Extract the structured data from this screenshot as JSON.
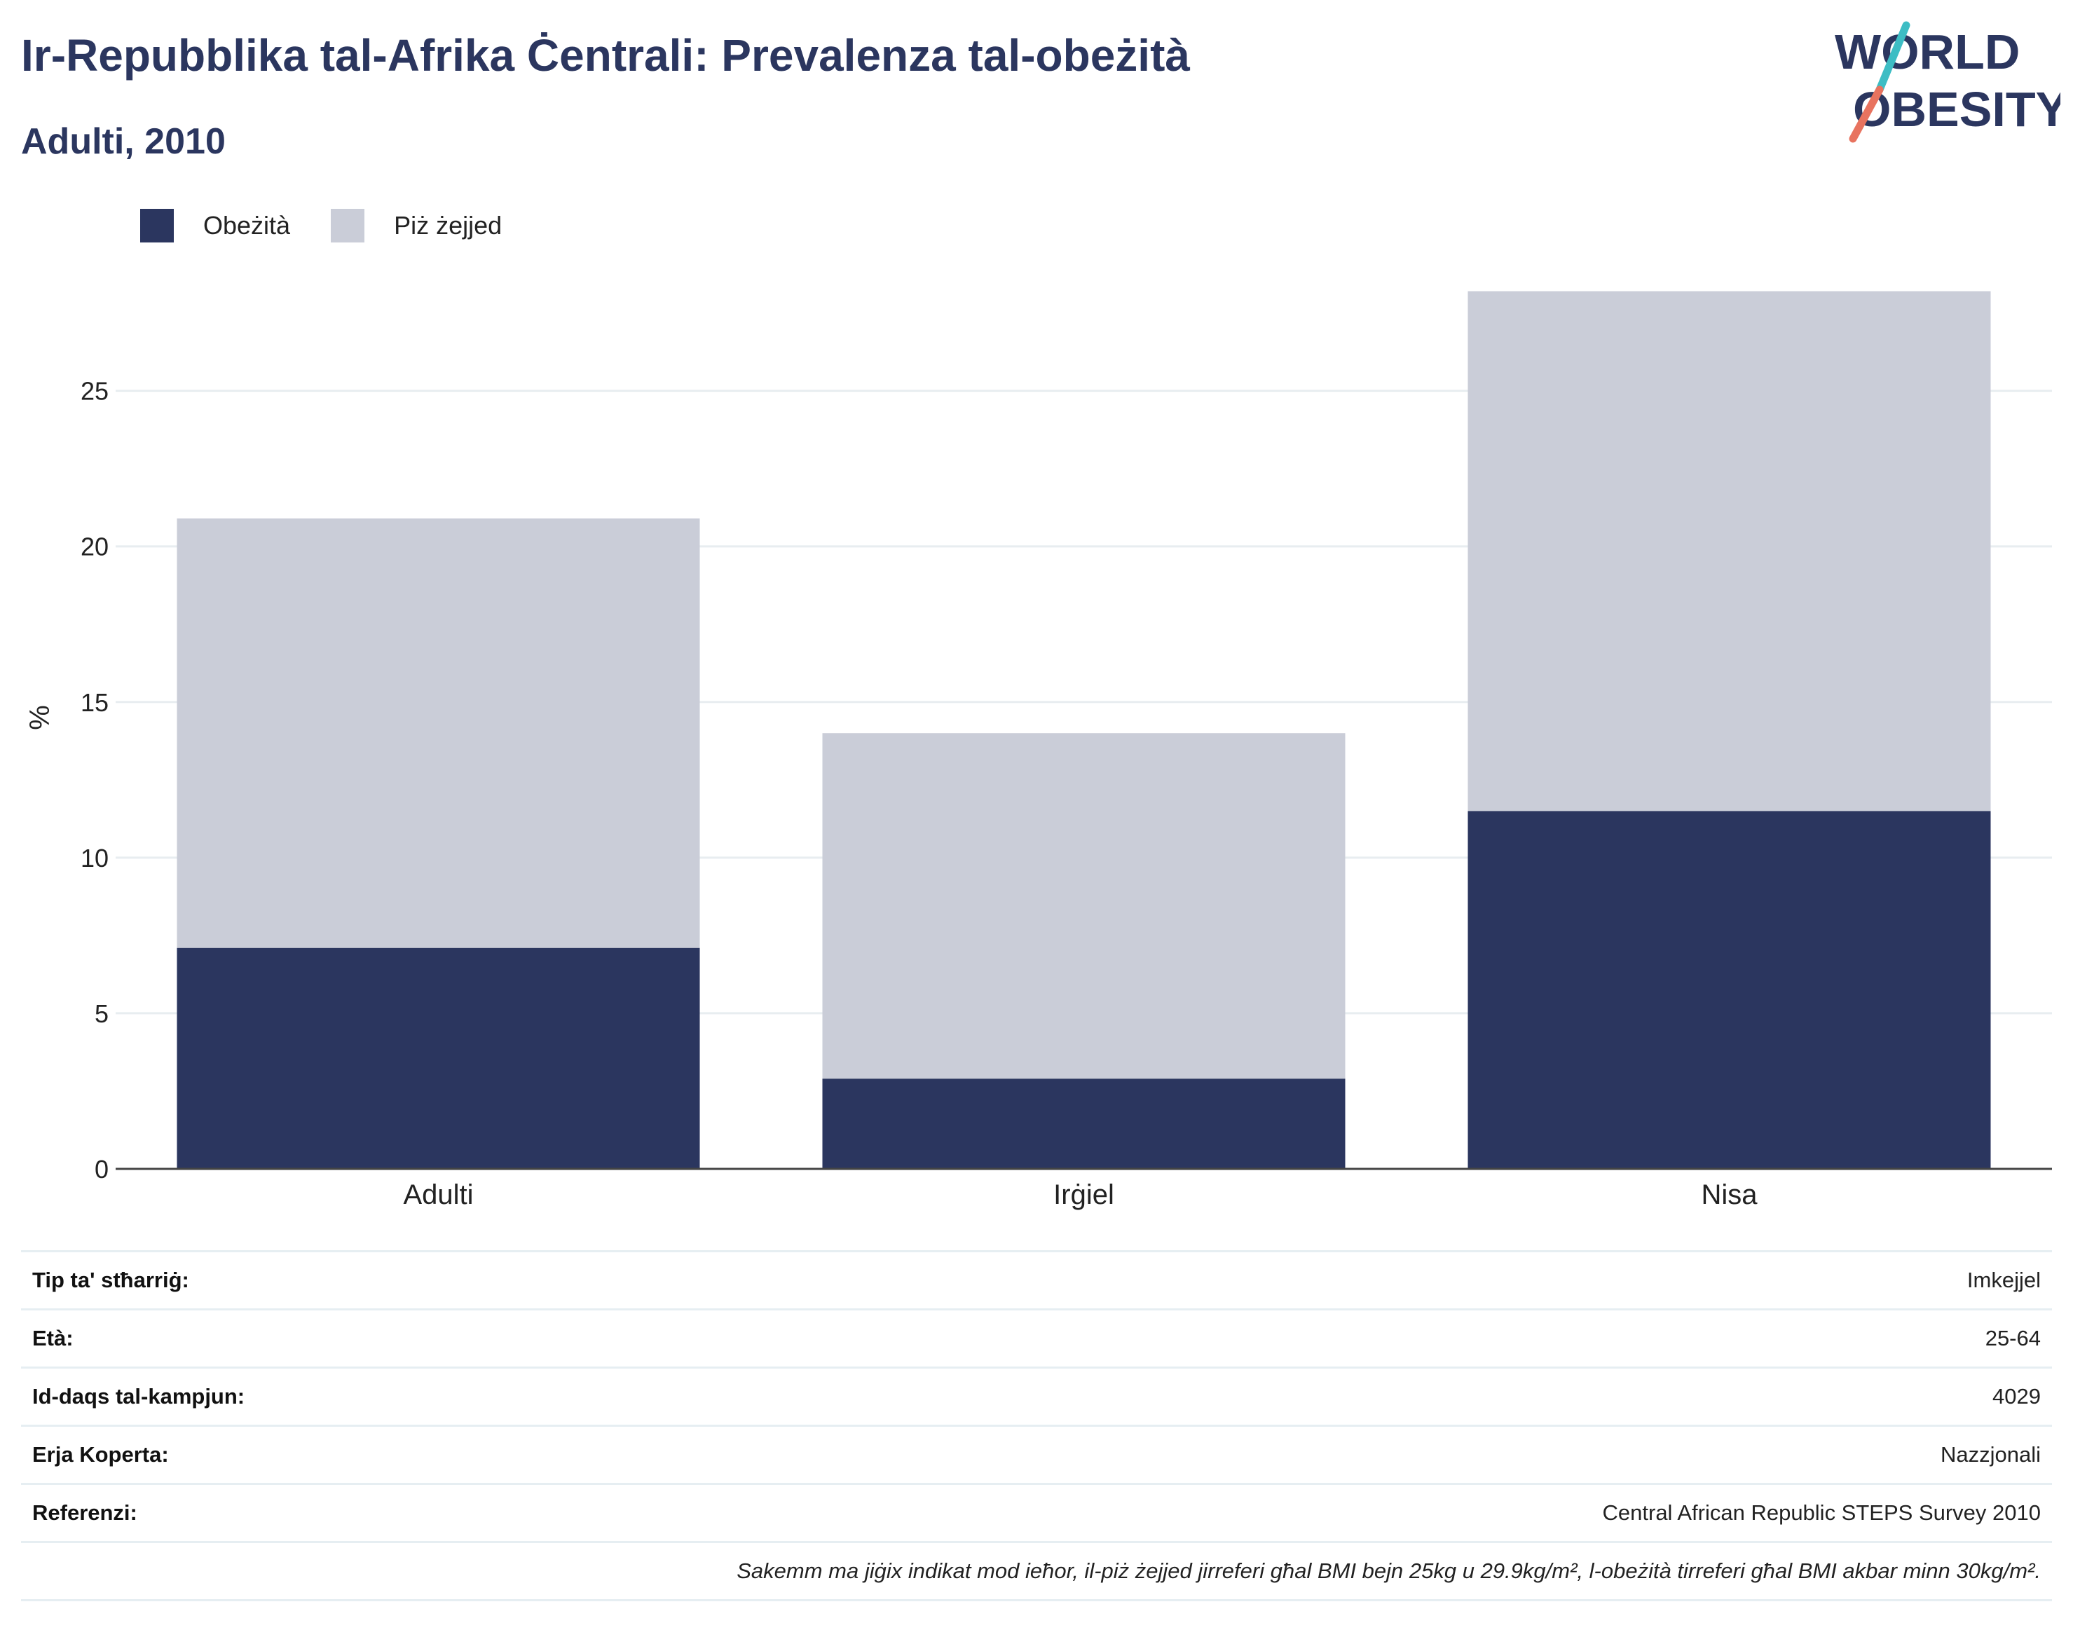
{
  "header": {
    "title": "Ir-Repubblika tal-Afrika Ċentrali: Prevalenza tal-obeżità",
    "subtitle": "Adulti, 2010"
  },
  "logo": {
    "line1": "WORLD",
    "line2": "OBESITY"
  },
  "colors": {
    "obesity": "#2b365f",
    "overweight": "#cacdd8",
    "title": "#2b365f",
    "logo_teal": "#3dbdc4",
    "logo_coral": "#e8735f"
  },
  "legend": [
    {
      "label": "Obeżità",
      "color": "#2b365f"
    },
    {
      "label": "Piż żejjed",
      "color": "#cacdd8"
    }
  ],
  "chart_data": {
    "type": "bar",
    "stacked": true,
    "categories": [
      "Adulti",
      "Irġiel",
      "Nisa"
    ],
    "series": [
      {
        "name": "Obeżità",
        "values": [
          7.1,
          2.9,
          11.5
        ]
      },
      {
        "name": "Piż żejjed",
        "values": [
          13.8,
          11.1,
          16.7
        ]
      }
    ],
    "ylabel": "%",
    "yticks": [
      0,
      5,
      10,
      15,
      20,
      25
    ],
    "ylim": [
      0,
      29
    ],
    "grid": true,
    "legend_position": "top-left"
  },
  "details": [
    {
      "label": "Tip ta' stħarriġ:",
      "value": "Imkejjel"
    },
    {
      "label": "Età:",
      "value": "25-64"
    },
    {
      "label": "Id-daqs tal-kampjun:",
      "value": "4029"
    },
    {
      "label": "Erja Koperta:",
      "value": "Nazzjonali"
    },
    {
      "label": "Referenzi:",
      "value": "Central African Republic STEPS Survey 2010"
    }
  ],
  "footnote": "Sakemm ma jiġix indikat mod ieħor, il-piż żejjed jirreferi għal BMI bejn 25kg u 29.9kg/m², l-obeżità tirreferi għal BMI akbar minn 30kg/m²."
}
